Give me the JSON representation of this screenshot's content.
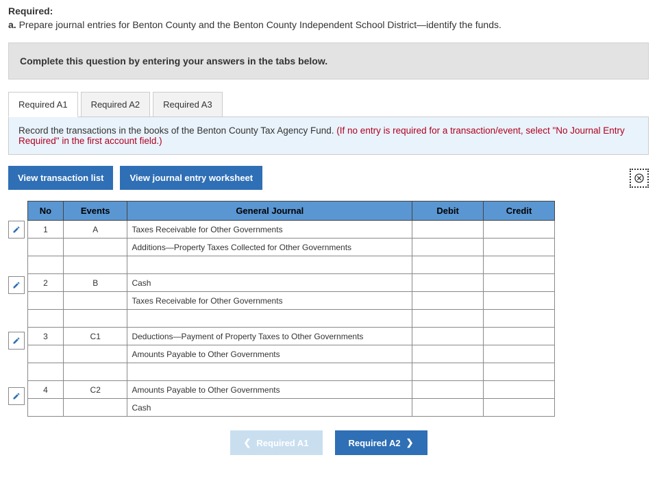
{
  "heading": "Required:",
  "question_label": "a.",
  "question_text": "Prepare journal entries for Benton County and the Benton County Independent School District—identify the funds.",
  "instruction_banner": "Complete this question by entering your answers in the tabs below.",
  "tabs": [
    {
      "label": "Required A1",
      "active": true
    },
    {
      "label": "Required A2",
      "active": false
    },
    {
      "label": "Required A3",
      "active": false
    }
  ],
  "tab_instruction_main": "Record the transactions in the books of the Benton County Tax Agency Fund. ",
  "tab_instruction_red": "(If no entry is required for a transaction/event, select \"No Journal Entry Required\" in the first account field.)",
  "buttons": {
    "view_transaction": "View transaction list",
    "view_worksheet": "View journal entry worksheet"
  },
  "table": {
    "headers": {
      "no": "No",
      "events": "Events",
      "journal": "General Journal",
      "debit": "Debit",
      "credit": "Credit"
    },
    "groups": [
      {
        "edit": true,
        "rows": [
          {
            "no": "1",
            "event": "A",
            "journal": "Taxes Receivable for Other Governments",
            "debit": "",
            "credit": ""
          },
          {
            "no": "",
            "event": "",
            "journal": "Additions—Property Taxes Collected for Other Governments",
            "debit": "",
            "credit": ""
          },
          {
            "no": "",
            "event": "",
            "journal": "",
            "debit": "",
            "credit": ""
          }
        ]
      },
      {
        "edit": true,
        "rows": [
          {
            "no": "2",
            "event": "B",
            "journal": "Cash",
            "debit": "",
            "credit": ""
          },
          {
            "no": "",
            "event": "",
            "journal": "Taxes Receivable for Other Governments",
            "debit": "",
            "credit": ""
          },
          {
            "no": "",
            "event": "",
            "journal": "",
            "debit": "",
            "credit": ""
          }
        ]
      },
      {
        "edit": true,
        "rows": [
          {
            "no": "3",
            "event": "C1",
            "journal": "Deductions—Payment of Property Taxes to Other Governments",
            "debit": "",
            "credit": ""
          },
          {
            "no": "",
            "event": "",
            "journal": "Amounts Payable to Other Governments",
            "debit": "",
            "credit": ""
          },
          {
            "no": "",
            "event": "",
            "journal": "",
            "debit": "",
            "credit": ""
          }
        ]
      },
      {
        "edit": true,
        "rows": [
          {
            "no": "4",
            "event": "C2",
            "journal": "Amounts Payable to Other Governments",
            "debit": "",
            "credit": ""
          },
          {
            "no": "",
            "event": "",
            "journal": "Cash",
            "debit": "",
            "credit": ""
          }
        ]
      }
    ]
  },
  "nav": {
    "prev": "Required A1",
    "next": "Required A2"
  },
  "colors": {
    "tab_active_bg": "#ffffff",
    "tab_inactive_bg": "#f2f2f2",
    "banner_bg": "#e3e3e3",
    "info_bg": "#e9f3fb",
    "header_bg": "#5a96d2",
    "blue_btn": "#2f6fb5",
    "disabled_btn": "#c9dff0",
    "red_text": "#b00020"
  }
}
